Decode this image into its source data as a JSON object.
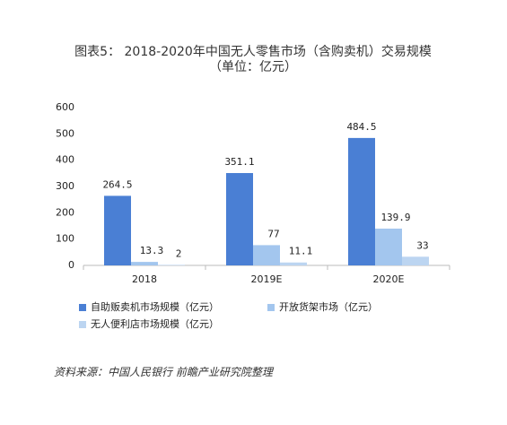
{
  "chart_data": {
    "type": "bar",
    "title": "图表5：  2018-2020年中国无人零售市场（含购卖机）交易规模（单位：亿元）",
    "categories": [
      "2018",
      "2019E",
      "2020E"
    ],
    "series": [
      {
        "name": "自助贩卖机市场规模（亿元）",
        "color": "#4a7fd4",
        "values": [
          264.5,
          351.1,
          484.5
        ]
      },
      {
        "name": "开放货架市场（亿元）",
        "color": "#a3c6ee",
        "values": [
          13.3,
          77,
          139.9
        ]
      },
      {
        "name": "无人便利店市场规模（亿元）",
        "color": "#bcd5f1",
        "values": [
          2,
          11.1,
          33
        ]
      }
    ],
    "ylim": [
      0,
      600
    ],
    "yticks": [
      0,
      100,
      200,
      300,
      400,
      500,
      600
    ],
    "source": "资料来源：中国人民银行 前瞻产业研究院整理"
  }
}
